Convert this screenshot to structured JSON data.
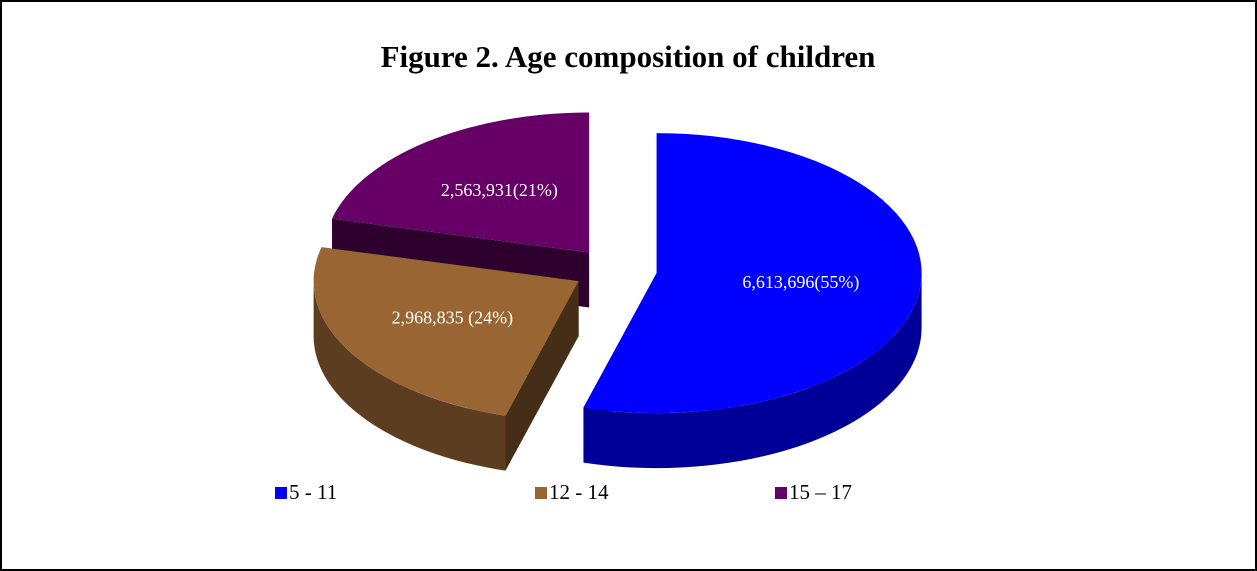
{
  "chart_data": {
    "type": "pie",
    "title": "Figure 2. Age composition of children",
    "categories": [
      "5 - 11",
      "12 - 14",
      "15 – 17"
    ],
    "values": [
      6613696,
      2968835,
      2563931
    ],
    "value_labels": [
      "6,613,696(55%)",
      "2,968,835 (24%)",
      "2,563,931(21%)"
    ],
    "colors": [
      "#0000ff",
      "#996633",
      "#660066"
    ],
    "legend": "bottom"
  }
}
